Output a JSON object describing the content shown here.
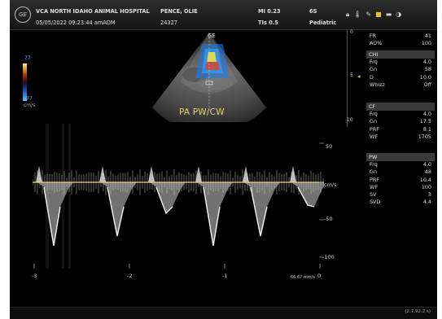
{
  "header": {
    "hospital": "VCA NORTH IDAHO ANIMAL HOSPITAL",
    "patient": "PENCE, OLIE",
    "date_time": "05/05/2022 09:23:44 amADM",
    "id": "24327",
    "mi": "MI 0.23",
    "tis": "TIs 0.5",
    "probe": "6S",
    "preset": "Pediatric",
    "logo": "GE",
    "icons": [
      "lock-icon",
      "thermometer-icon",
      "tools-icon",
      "folder-icon",
      "battery-icon",
      "power-icon"
    ]
  },
  "image": {
    "ge_marker": "GE",
    "mode_label": "PA PW/CW",
    "colorbar_top": "77",
    "colorbar_bottom": "-77",
    "colorbar_unit": "cm/s",
    "depth_labels": [
      "0",
      "5",
      "10"
    ],
    "colors": {
      "accent_yellow": "#e8d070",
      "doppler_blue": "#1c7cf0",
      "doppler_red": "#e04020"
    }
  },
  "spectral": {
    "y_labels": [
      "50",
      "cm/s",
      "-50",
      "-100"
    ],
    "x_labels": [
      "-3",
      "-2",
      "-1",
      "0"
    ],
    "sweep": "66.67 mm/s"
  },
  "params": {
    "general": [
      {
        "k": "FR",
        "v": "41"
      },
      {
        "k": "AO%",
        "v": "100"
      }
    ],
    "chi_title": "CHI",
    "chi": [
      {
        "k": "Frq",
        "v": "4.0"
      },
      {
        "k": "Gn",
        "v": "58"
      },
      {
        "k": "D",
        "v": "10.0"
      },
      {
        "k": "Whizz",
        "v": "Off"
      }
    ],
    "cf_title": "CF",
    "cf": [
      {
        "k": "Frq",
        "v": "4.0"
      },
      {
        "k": "Gn",
        "v": "17.5"
      },
      {
        "k": "PRF",
        "v": "8.1"
      },
      {
        "k": "WF",
        "v": "1705"
      }
    ],
    "pw_title": "PW",
    "pw": [
      {
        "k": "Frq",
        "v": "4.0"
      },
      {
        "k": "Gn",
        "v": "48"
      },
      {
        "k": "PRF",
        "v": "10.4"
      },
      {
        "k": "WF",
        "v": "100"
      },
      {
        "k": "SV",
        "v": "3"
      },
      {
        "k": "SVD",
        "v": "4.4"
      }
    ]
  },
  "footer": {
    "version": "(2.7.92.2 s)"
  }
}
